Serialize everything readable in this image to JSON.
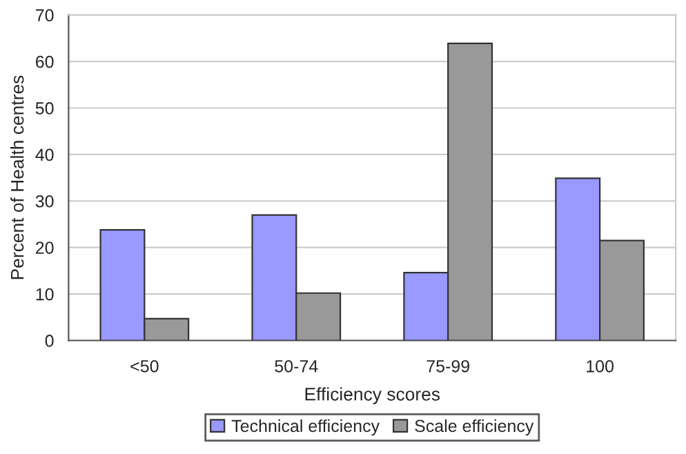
{
  "chart_data": {
    "type": "bar",
    "xlabel": "Efficiency scores",
    "ylabel": "Percent of Health centres",
    "categories": [
      "<50",
      "50-74",
      "75-99",
      "100"
    ],
    "series": [
      {
        "name": "Technical efficiency",
        "color": "#9999ff",
        "values": [
          23.8,
          27.0,
          14.6,
          34.9
        ]
      },
      {
        "name": "Scale efficiency",
        "color": "#999999",
        "values": [
          4.7,
          10.2,
          63.9,
          21.5
        ]
      }
    ],
    "ylim": [
      0,
      70
    ],
    "yticks": [
      0,
      10,
      20,
      30,
      40,
      50,
      60,
      70
    ],
    "grid": "y",
    "legend": "bottom"
  }
}
